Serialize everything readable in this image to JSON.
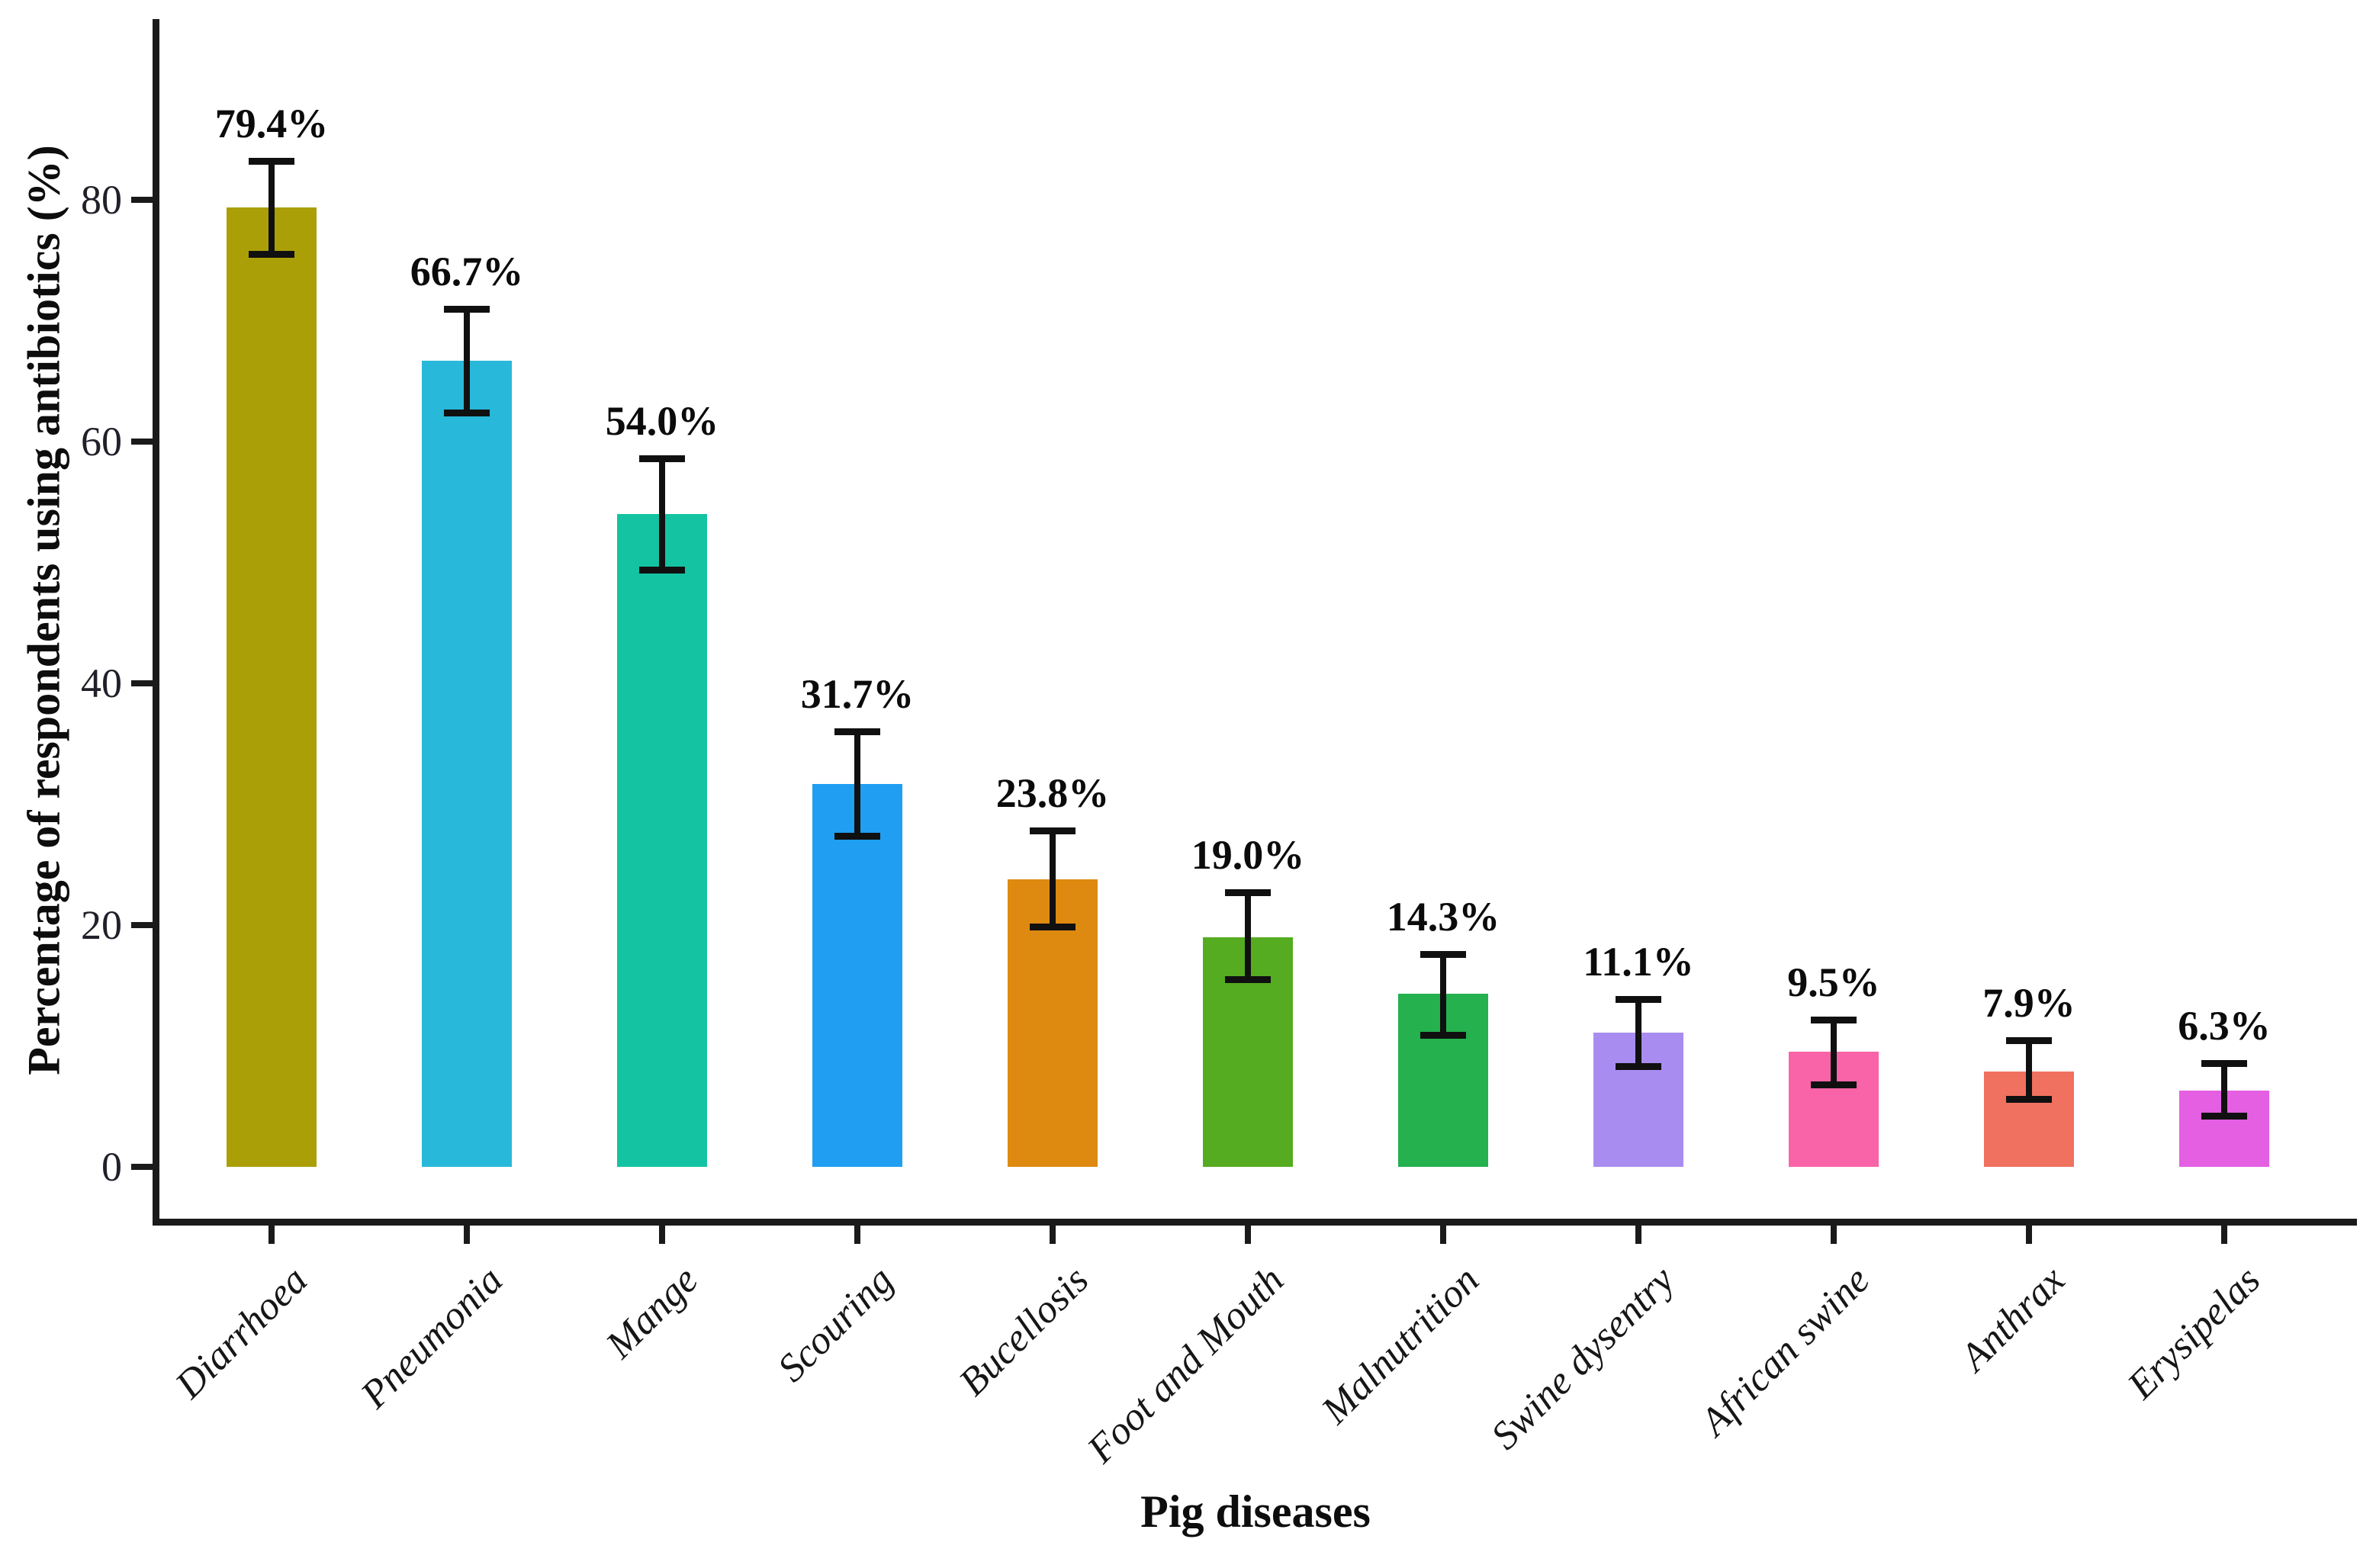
{
  "chart_data": {
    "type": "bar",
    "title": "",
    "xlabel": "Pig diseases",
    "ylabel": "Percentage of respondents using antibiotics (%)",
    "ylim": [
      0,
      95
    ],
    "yticks": [
      0,
      20,
      40,
      60,
      80
    ],
    "grid": false,
    "legend": "none",
    "bar_label_format": "percent-one-decimal",
    "categories": [
      "Diarrhoea",
      "Pneumonia",
      "Mange",
      "Scouring",
      "Bucellosis",
      "Foot and Mouth",
      "Malnutrition",
      "Swine dysentry",
      "African swine",
      "Anthrax",
      "Erysipelas"
    ],
    "values": [
      79.4,
      66.7,
      54.0,
      31.7,
      23.8,
      19.0,
      14.3,
      11.1,
      9.5,
      7.9,
      6.3
    ],
    "bar_labels": [
      "79.4%",
      "66.7%",
      "54.0%",
      "31.7%",
      "23.8%",
      "19.0%",
      "14.3%",
      "11.1%",
      "9.5%",
      "7.9%",
      "6.3%"
    ],
    "error_low": [
      75.5,
      62.4,
      49.4,
      27.4,
      19.9,
      15.5,
      10.9,
      8.3,
      6.8,
      5.6,
      4.2
    ],
    "error_high": [
      83.2,
      71.0,
      58.6,
      36.0,
      27.8,
      22.7,
      17.6,
      13.9,
      12.2,
      10.5,
      8.6
    ],
    "colors": [
      "#ab9f08",
      "#28b8d9",
      "#14c3a2",
      "#1f9ef2",
      "#de8a11",
      "#55ac20",
      "#24b14e",
      "#a98cf0",
      "#f864a7",
      "#f0715f",
      "#e45fe2"
    ],
    "axis_color": "#1a1a1a",
    "error_bar_color": "#101010",
    "text_color": "#0d0d0d"
  }
}
